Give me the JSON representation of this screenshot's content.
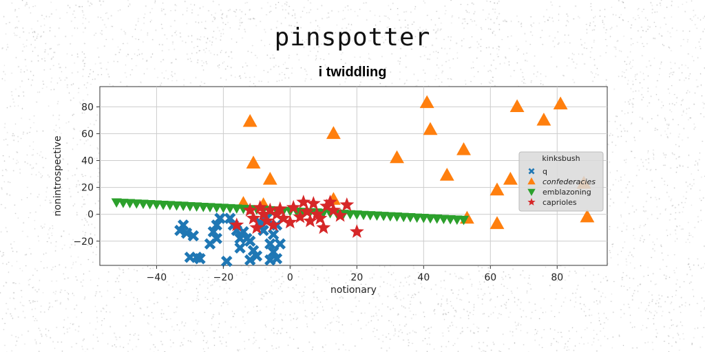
{
  "chart_data": {
    "type": "scatter",
    "supertitle": "pinspotter",
    "title": "i twiddling",
    "xlabel": "notionary",
    "ylabel": "nonintrospective",
    "xlim": [
      -57,
      95
    ],
    "ylim": [
      -38,
      95
    ],
    "xticks": [
      -40,
      -20,
      0,
      20,
      40,
      60,
      80
    ],
    "yticks": [
      -20,
      0,
      20,
      40,
      60,
      80
    ],
    "grid": true,
    "legend": {
      "title": "kinksbush",
      "placement": "right"
    },
    "series": [
      {
        "name": "q",
        "marker": "x",
        "color": "#1f77b4",
        "points": [
          [
            -33,
            -12
          ],
          [
            -32,
            -8
          ],
          [
            -31,
            -14
          ],
          [
            -30,
            -32
          ],
          [
            -29,
            -16
          ],
          [
            -28,
            -32
          ],
          [
            -27,
            -33
          ],
          [
            -24,
            -22
          ],
          [
            -23,
            -13
          ],
          [
            -22,
            -18
          ],
          [
            -22,
            -8
          ],
          [
            -21,
            -3
          ],
          [
            -19,
            -35
          ],
          [
            -18,
            -3
          ],
          [
            -17,
            -8
          ],
          [
            -16,
            -12
          ],
          [
            -15,
            -18
          ],
          [
            -15,
            -25
          ],
          [
            -14,
            -13
          ],
          [
            -13,
            -18
          ],
          [
            -12,
            -20
          ],
          [
            -12,
            -34
          ],
          [
            -11,
            -27
          ],
          [
            -10,
            -31
          ],
          [
            -9,
            -6
          ],
          [
            -8,
            -12
          ],
          [
            -7,
            -3
          ],
          [
            -6,
            -22
          ],
          [
            -6,
            -34
          ],
          [
            -5,
            -28
          ],
          [
            -5,
            -15
          ],
          [
            -4,
            -8
          ],
          [
            -4,
            -33
          ],
          [
            -3,
            -22
          ]
        ]
      },
      {
        "name": "confederacies",
        "marker": "^",
        "color": "#ff7f0e",
        "points": [
          [
            -12,
            69
          ],
          [
            -11,
            38
          ],
          [
            -6,
            26
          ],
          [
            -8,
            7
          ],
          [
            -14,
            8
          ],
          [
            13,
            60
          ],
          [
            13,
            11
          ],
          [
            32,
            42
          ],
          [
            41,
            83
          ],
          [
            42,
            63
          ],
          [
            47,
            29
          ],
          [
            52,
            48
          ],
          [
            53,
            -3
          ],
          [
            62,
            18
          ],
          [
            62,
            -7
          ],
          [
            66,
            26
          ],
          [
            68,
            80
          ],
          [
            76,
            70
          ],
          [
            81,
            82
          ],
          [
            88,
            23
          ],
          [
            89,
            -2
          ]
        ]
      },
      {
        "name": "emblazoning",
        "marker": "v",
        "color": "#2ca02c",
        "points": [
          [
            -52,
            9
          ],
          [
            -50,
            8.7
          ],
          [
            -48,
            8.5
          ],
          [
            -46,
            8.2
          ],
          [
            -44,
            8
          ],
          [
            -42,
            7.7
          ],
          [
            -40,
            7.5
          ],
          [
            -38,
            7.2
          ],
          [
            -36,
            7
          ],
          [
            -34,
            6.7
          ],
          [
            -32,
            6.5
          ],
          [
            -30,
            6.2
          ],
          [
            -28,
            6
          ],
          [
            -26,
            5.7
          ],
          [
            -24,
            5.5
          ],
          [
            -22,
            5.2
          ],
          [
            -20,
            5
          ],
          [
            -18,
            4.7
          ],
          [
            -16,
            4.5
          ],
          [
            -14,
            4.2
          ],
          [
            -12,
            4
          ],
          [
            -10,
            3.7
          ],
          [
            -8,
            3.5
          ],
          [
            -6,
            3.2
          ],
          [
            -4,
            3
          ],
          [
            -2,
            2.7
          ],
          [
            0,
            2.5
          ],
          [
            2,
            2.2
          ],
          [
            4,
            2
          ],
          [
            6,
            1.7
          ],
          [
            8,
            1.5
          ],
          [
            10,
            1.2
          ],
          [
            12,
            1
          ],
          [
            14,
            0.7
          ],
          [
            16,
            0.5
          ],
          [
            18,
            0.2
          ],
          [
            20,
            0
          ],
          [
            22,
            -0.3
          ],
          [
            24,
            -0.5
          ],
          [
            26,
            -0.8
          ],
          [
            28,
            -1
          ],
          [
            30,
            -1.3
          ],
          [
            32,
            -1.5
          ],
          [
            34,
            -1.8
          ],
          [
            36,
            -2
          ],
          [
            38,
            -2.3
          ],
          [
            40,
            -2.5
          ],
          [
            42,
            -2.8
          ],
          [
            44,
            -3
          ],
          [
            46,
            -3.3
          ],
          [
            48,
            -3.5
          ],
          [
            50,
            -3.8
          ],
          [
            52,
            -4
          ]
        ]
      },
      {
        "name": "caprioles",
        "marker": "*",
        "color": "#d62728",
        "points": [
          [
            -16,
            -8
          ],
          [
            -12,
            3
          ],
          [
            -11,
            -3
          ],
          [
            -10,
            -10
          ],
          [
            -9,
            5
          ],
          [
            -8,
            0
          ],
          [
            -7,
            -5
          ],
          [
            -6,
            3
          ],
          [
            -5,
            -8
          ],
          [
            -4,
            0
          ],
          [
            -3,
            4
          ],
          [
            -2,
            -3
          ],
          [
            0,
            -6
          ],
          [
            1,
            5
          ],
          [
            3,
            -2
          ],
          [
            4,
            9
          ],
          [
            5,
            2
          ],
          [
            6,
            -5
          ],
          [
            7,
            8
          ],
          [
            8,
            0
          ],
          [
            9,
            -3
          ],
          [
            10,
            -10
          ],
          [
            11,
            6
          ],
          [
            12,
            9
          ],
          [
            13,
            3
          ],
          [
            15,
            -1
          ],
          [
            17,
            7
          ],
          [
            20,
            -13
          ]
        ]
      }
    ]
  }
}
